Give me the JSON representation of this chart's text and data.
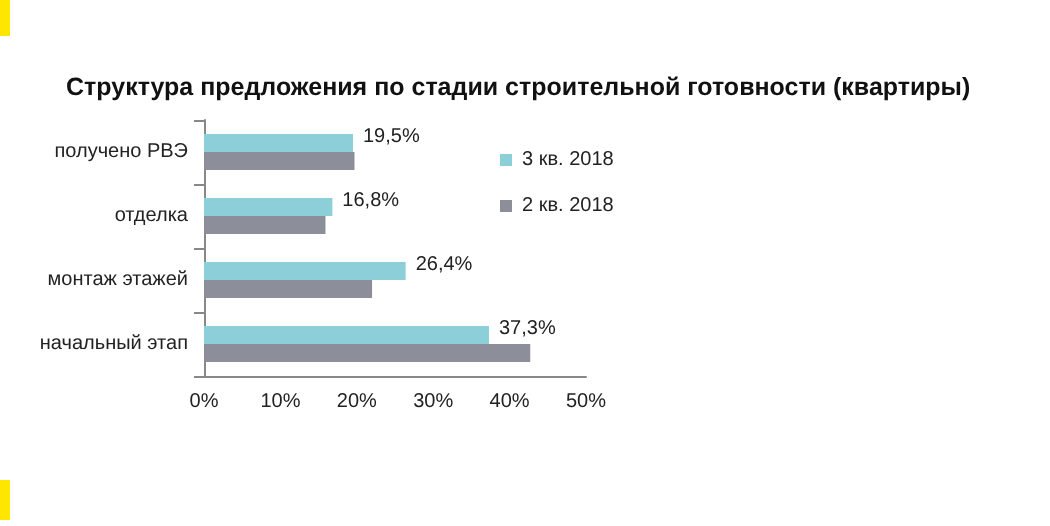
{
  "chart_data": {
    "type": "bar",
    "orientation": "horizontal",
    "title": "Структура предложения по стадии строительной готовности (квартиры)",
    "categories": [
      "получено РВЭ",
      "отделка",
      "монтаж этажей",
      "начальный этап"
    ],
    "series": [
      {
        "name": "3 кв. 2018",
        "color": "#8ccfd8",
        "values": [
          19.5,
          16.8,
          26.4,
          37.3
        ],
        "value_labels": [
          "19,5%",
          "16,8%",
          "26,4%",
          "37,3%"
        ]
      },
      {
        "name": "2 кв. 2018",
        "color": "#8c8f99",
        "values": [
          19.7,
          15.9,
          22.0,
          42.7
        ]
      }
    ],
    "xlim": [
      0,
      50
    ],
    "xticks": [
      {
        "value": 0,
        "label": "0%"
      },
      {
        "value": 10,
        "label": "10%"
      },
      {
        "value": 20,
        "label": "20%"
      },
      {
        "value": 30,
        "label": "30%"
      },
      {
        "value": 40,
        "label": "40%"
      },
      {
        "value": 50,
        "label": "50%"
      }
    ],
    "grid": false,
    "legend": "right"
  }
}
